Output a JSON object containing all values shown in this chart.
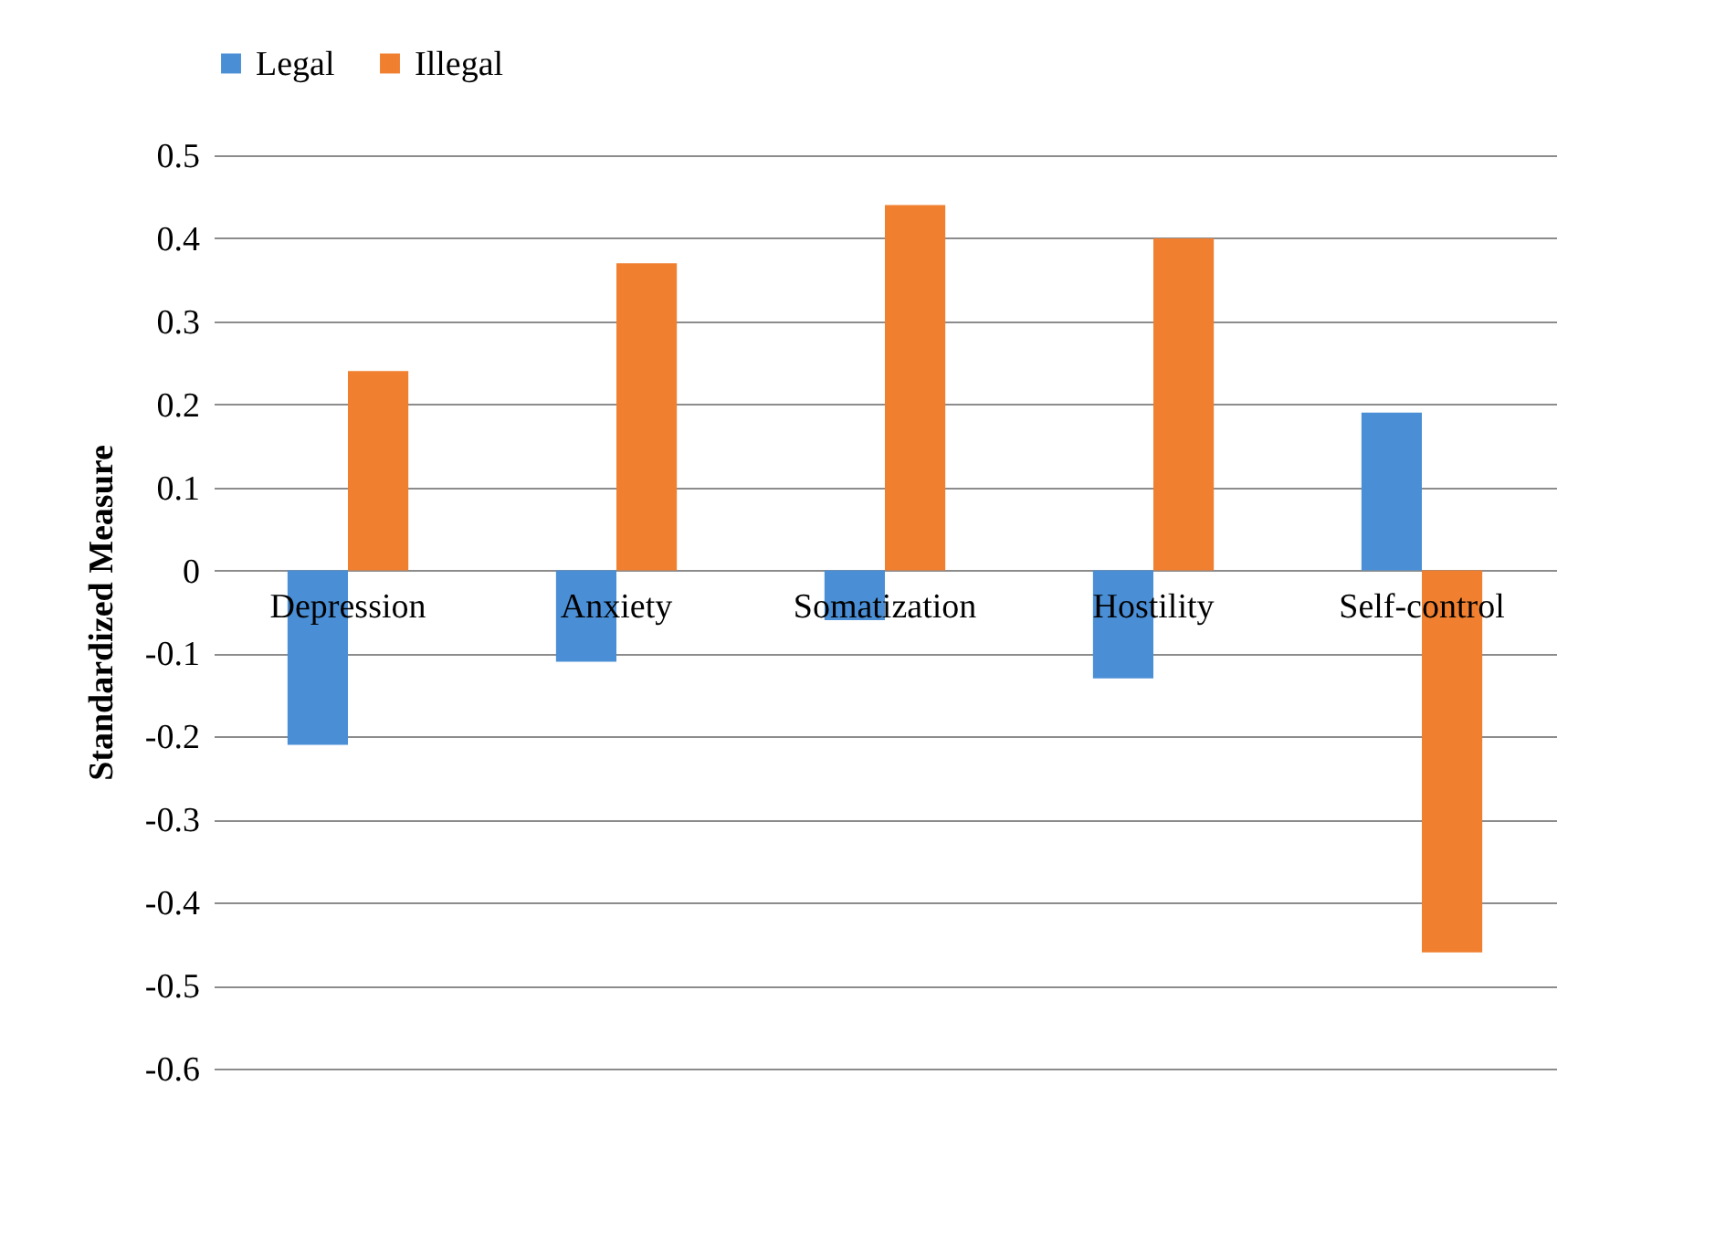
{
  "chart_data": {
    "type": "bar",
    "ylabel": "Standardized Measure",
    "categories": [
      "Depression",
      "Anxiety",
      "Somatization",
      "Hostility",
      "Self-control"
    ],
    "series": [
      {
        "name": "Legal",
        "color": "#4a8fd6",
        "values": [
          -0.21,
          -0.11,
          -0.06,
          -0.13,
          0.19
        ]
      },
      {
        "name": "Illegal",
        "color": "#f07f30",
        "values": [
          0.24,
          0.37,
          0.44,
          0.4,
          -0.46
        ]
      }
    ],
    "ylim": [
      -0.6,
      0.5
    ],
    "yticks": [
      -0.6,
      -0.5,
      -0.4,
      -0.3,
      -0.2,
      -0.1,
      0,
      0.1,
      0.2,
      0.3,
      0.4,
      0.5
    ],
    "grid": "y",
    "legend": "top"
  }
}
